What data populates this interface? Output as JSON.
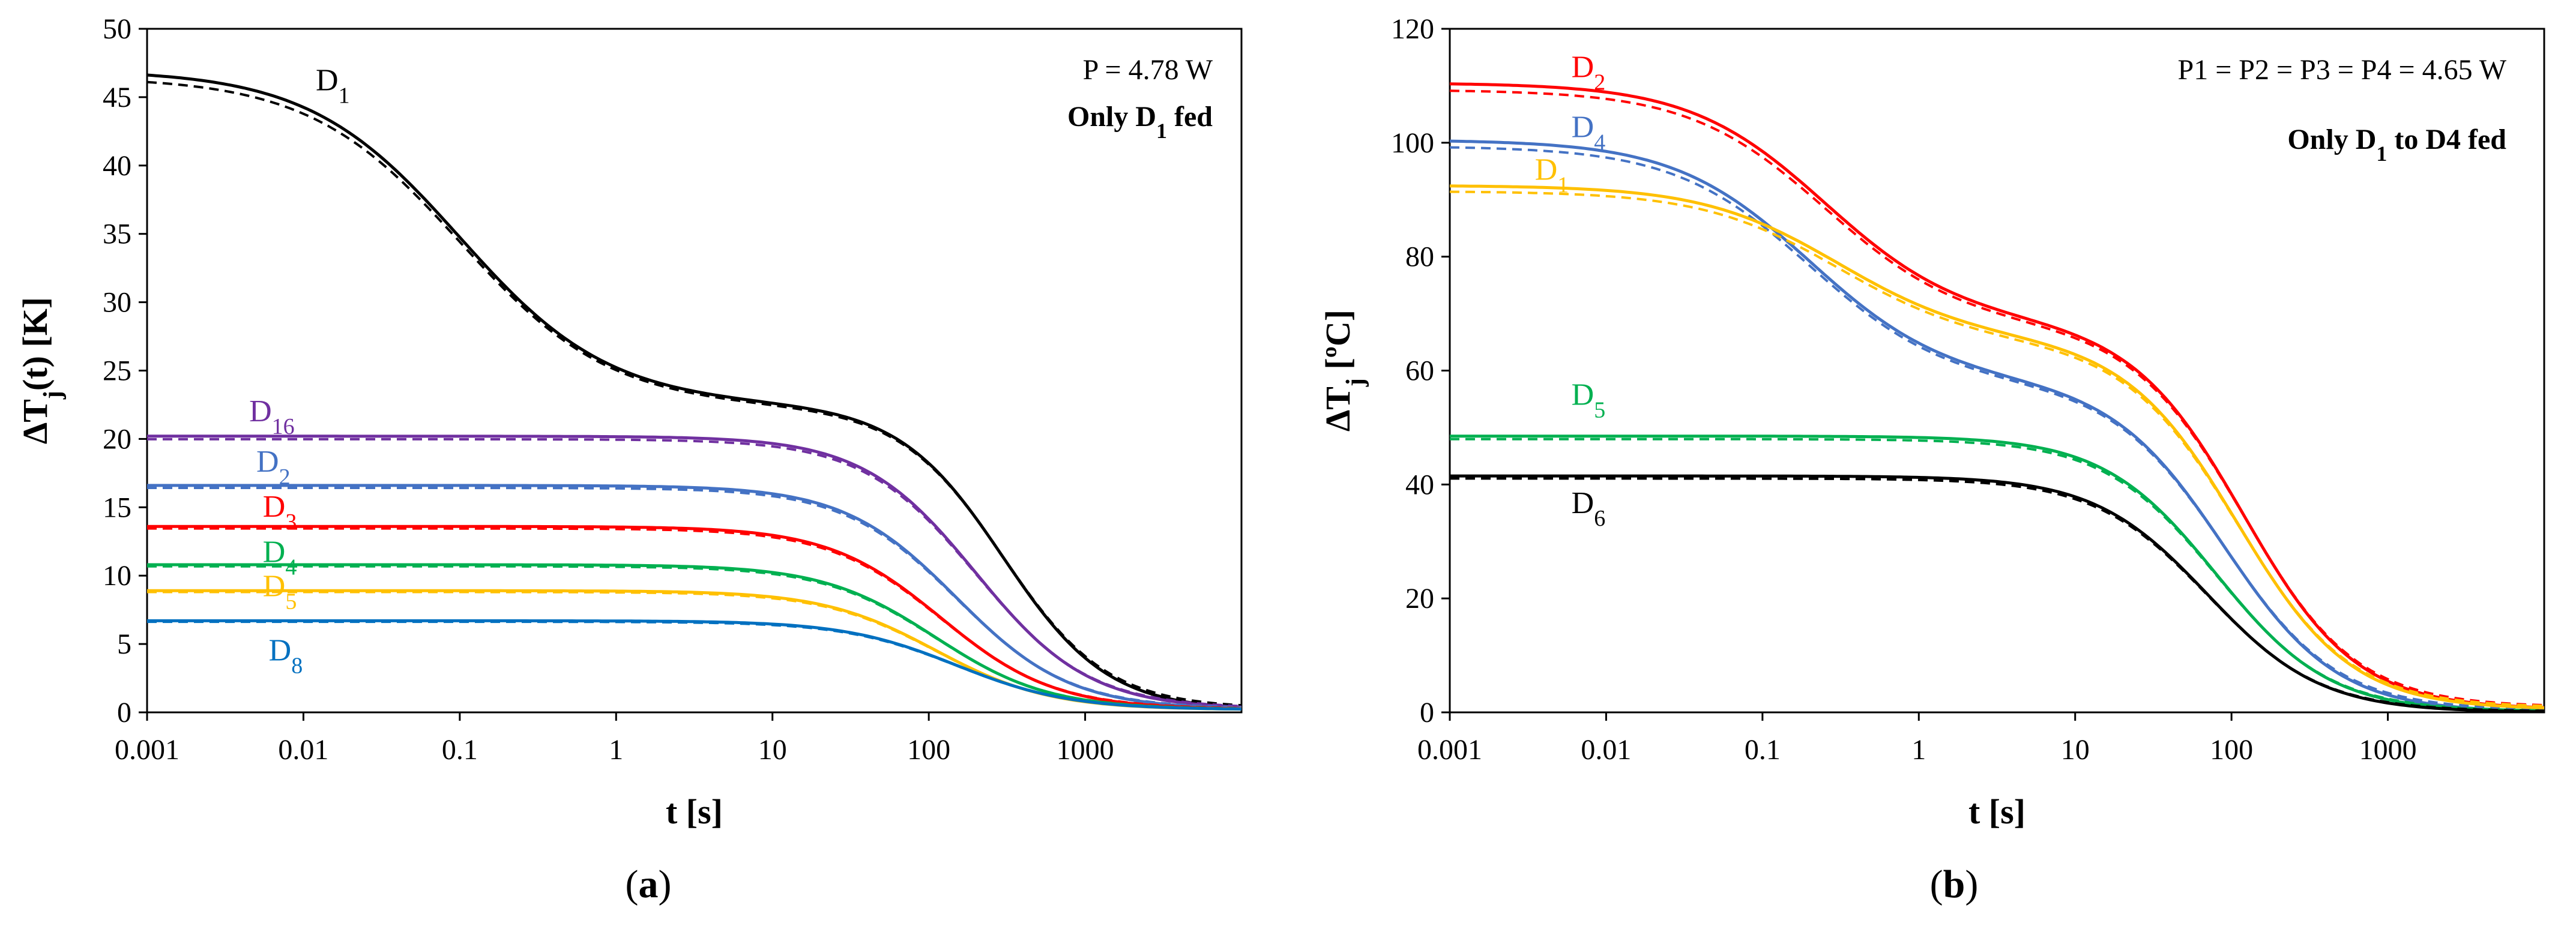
{
  "charts": [
    {
      "id": "a",
      "panel_label": "(a)",
      "panel_letter": "a",
      "type": "line",
      "xscale": "log",
      "xlim": [
        0.001,
        10000
      ],
      "ylim": [
        0,
        50
      ],
      "x_ticks": [
        "0.001",
        "0.01",
        "0.1",
        "1",
        "10",
        "100",
        "1000"
      ],
      "y_ticks": [
        "0",
        "5",
        "10",
        "15",
        "20",
        "25",
        "30",
        "35",
        "40",
        "45",
        "50"
      ],
      "ylabel": {
        "base": "ΔT",
        "sub": "j",
        "rest": "(t) [K]"
      },
      "xlabel": "t [s]",
      "note_line1": "P = 4.78 W",
      "note_line2": {
        "pre": "Only D",
        "sub": "1",
        "post": " fed"
      },
      "series": [
        {
          "name": "D1",
          "label_base": "D",
          "label_sub": "1",
          "color": "#000000",
          "y0": 47.0,
          "drops": [
            [
              24.5,
              0.1,
              0.9
            ],
            [
              22.4,
              300,
              1.3
            ]
          ],
          "label_at": [
            0.012,
            45.5
          ]
        },
        {
          "name": "D16",
          "label_base": "D",
          "label_sub": "16",
          "color": "#7030A0",
          "y0": 20.2,
          "drops": [
            [
              20.0,
              200,
              1.2
            ]
          ],
          "label_at": [
            0.0045,
            21.3
          ]
        },
        {
          "name": "D2",
          "label_base": "D",
          "label_sub": "2",
          "color": "#4472C4",
          "y0": 16.6,
          "drops": [
            [
              16.4,
              150,
              1.2
            ]
          ],
          "label_at": [
            0.005,
            17.6
          ]
        },
        {
          "name": "D3",
          "label_base": "D",
          "label_sub": "3",
          "color": "#FF0000",
          "y0": 13.6,
          "drops": [
            [
              13.4,
              120,
              1.2
            ]
          ],
          "label_at": [
            0.0055,
            14.3
          ]
        },
        {
          "name": "D4",
          "label_base": "D",
          "label_sub": "4",
          "color": "#00B050",
          "y0": 10.8,
          "drops": [
            [
              10.6,
              110,
              1.2
            ]
          ],
          "label_at": [
            0.0055,
            11.0
          ]
        },
        {
          "name": "D5",
          "label_base": "D",
          "label_sub": "5",
          "color": "#FFC000",
          "y0": 8.9,
          "drops": [
            [
              8.7,
              110,
              1.2
            ]
          ],
          "label_at": [
            0.0055,
            8.5
          ]
        },
        {
          "name": "D8",
          "label_base": "D",
          "label_sub": "8",
          "color": "#0070C0",
          "y0": 6.7,
          "drops": [
            [
              6.5,
              150,
              1.2
            ]
          ],
          "label_at": [
            0.006,
            3.8
          ]
        }
      ]
    },
    {
      "id": "b",
      "panel_label": "(b)",
      "panel_letter": "b",
      "type": "line",
      "xscale": "log",
      "xlim": [
        0.001,
        10000
      ],
      "ylim": [
        0,
        120
      ],
      "x_ticks": [
        "0.001",
        "0.01",
        "0.1",
        "1",
        "10",
        "100",
        "1000"
      ],
      "y_ticks": [
        "0",
        "20",
        "40",
        "60",
        "80",
        "100",
        "120"
      ],
      "ylabel": {
        "base": "ΔT",
        "sub": "j",
        "rest": " [ºC]"
      },
      "xlabel": "t [s]",
      "note_line1": "P1 = P2 = P3 = P4 = 4.65 W",
      "note_line2": {
        "pre": "Only D",
        "sub": "1",
        "post": " to D4 fed"
      },
      "series": [
        {
          "name": "D2",
          "label_base": "D",
          "label_sub": "2",
          "color": "#FF0000",
          "y0": 110.5,
          "drops": [
            [
              42.0,
              0.25,
              1.0
            ],
            [
              68.0,
              120,
              1.2
            ]
          ],
          "label_at": [
            0.006,
            111.5
          ]
        },
        {
          "name": "D4",
          "label_base": "D",
          "label_sub": "4",
          "color": "#4472C4",
          "y0": 100.5,
          "drops": [
            [
              42.5,
              0.2,
              1.0
            ],
            [
              58.0,
              90,
              1.2
            ]
          ],
          "label_at": [
            0.006,
            101.0
          ]
        },
        {
          "name": "D1",
          "label_base": "D",
          "label_sub": "1",
          "color": "#FFC000",
          "y0": 92.5,
          "drops": [
            [
              27.0,
              0.3,
              1.0
            ],
            [
              65.0,
              110,
              1.2
            ]
          ],
          "label_at": [
            0.0035,
            93.5
          ]
        },
        {
          "name": "D5",
          "label_base": "D",
          "label_sub": "5",
          "color": "#00B050",
          "y0": 48.5,
          "drops": [
            [
              48.5,
              80,
              1.2
            ]
          ],
          "label_at": [
            0.006,
            54.0
          ]
        },
        {
          "name": "D6",
          "label_base": "D",
          "label_sub": "6",
          "color": "#000000",
          "y0": 41.5,
          "drops": [
            [
              41.5,
              70,
              1.2
            ]
          ],
          "label_at": [
            0.006,
            35.0
          ]
        }
      ]
    }
  ]
}
